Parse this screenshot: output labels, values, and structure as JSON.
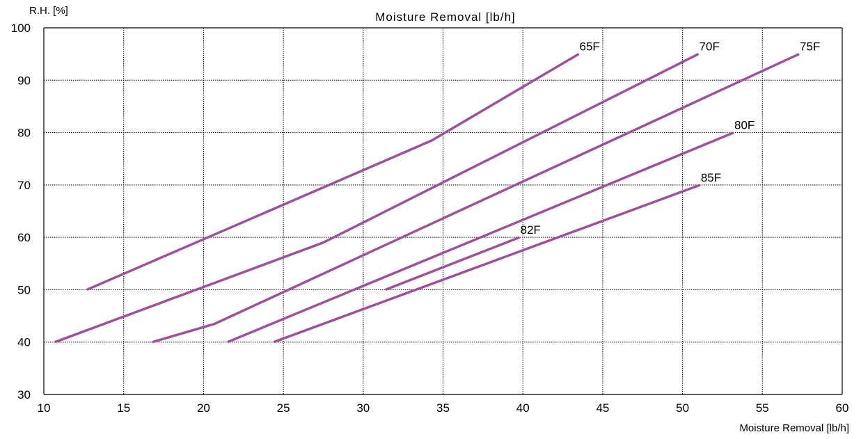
{
  "chart_data": {
    "type": "line",
    "title": "Moisture Removal [lb/h]",
    "xlabel": "Moisture Removal [lb/h]",
    "ylabel": "R.H. [%]",
    "xlim": [
      10,
      60
    ],
    "ylim": [
      30,
      100
    ],
    "x_ticks": [
      "10",
      "15",
      "20",
      "25",
      "30",
      "35",
      "40",
      "45",
      "50",
      "55",
      "60"
    ],
    "y_ticks": [
      "30",
      "40",
      "50",
      "60",
      "70",
      "80",
      "90",
      "100"
    ],
    "grid": true,
    "line_color": "#a0509a",
    "series": [
      {
        "name": "65F",
        "points": [
          [
            12.7,
            50
          ],
          [
            34.3,
            78.5
          ],
          [
            43.5,
            95
          ]
        ]
      },
      {
        "name": "70F",
        "points": [
          [
            10.7,
            40
          ],
          [
            27.5,
            59
          ],
          [
            51.0,
            95
          ]
        ]
      },
      {
        "name": "75F",
        "points": [
          [
            16.8,
            40
          ],
          [
            20.7,
            43.5
          ],
          [
            57.3,
            95
          ]
        ]
      },
      {
        "name": "80F",
        "points": [
          [
            21.5,
            40
          ],
          [
            53.2,
            80
          ]
        ]
      },
      {
        "name": "82F",
        "points": [
          [
            31.4,
            50
          ],
          [
            39.8,
            60
          ]
        ]
      },
      {
        "name": "85F",
        "points": [
          [
            24.4,
            40
          ],
          [
            51.1,
            70
          ]
        ]
      }
    ]
  }
}
